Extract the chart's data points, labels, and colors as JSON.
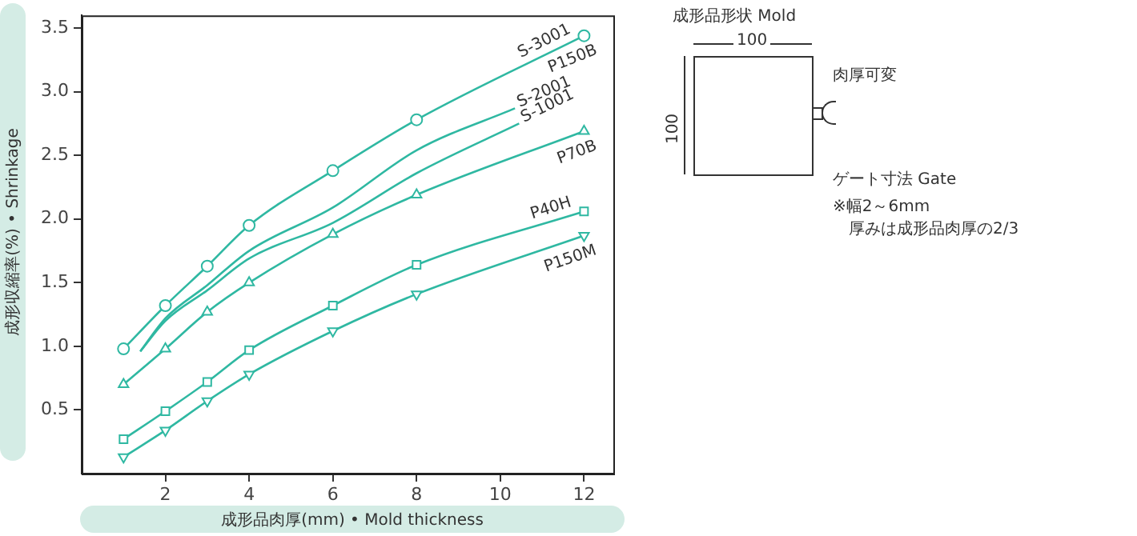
{
  "chart_data": {
    "type": "line",
    "xlabel": "成形品肉厚(mm) • Mold thickness",
    "ylabel": "成形収縮率(%) • Shrinkage",
    "xlim": [
      0,
      12.7
    ],
    "xticks": [
      2,
      4,
      6,
      8,
      10,
      12
    ],
    "ylim": [
      0,
      3.6
    ],
    "yticks": [
      0.5,
      {
        "value": 1,
        "label": "1.0"
      },
      1.5,
      {
        "value": 2,
        "label": "2.0"
      },
      2.5,
      {
        "value": 3,
        "label": "3.0"
      },
      3.5
    ],
    "grid": false,
    "legend": false,
    "series": [
      {
        "name": "S-3001",
        "color": "#2fb8a2",
        "marker": "circle",
        "x": [
          1,
          2,
          3,
          4,
          6,
          8,
          12
        ],
        "values": [
          0.98,
          1.32,
          1.63,
          1.95,
          2.38,
          2.78,
          3.44
        ]
      },
      {
        "name": "S-2001",
        "color": "#2fb8a2",
        "marker": "none",
        "x": [
          1.4,
          2,
          3,
          4,
          6,
          8,
          10.35
        ],
        "values": [
          0.96,
          1.22,
          1.48,
          1.75,
          2.09,
          2.54,
          2.87
        ]
      },
      {
        "name": "S-1001",
        "color": "#2fb8a2",
        "marker": "none",
        "x": [
          1.4,
          2,
          3,
          4,
          6,
          8,
          10.45
        ],
        "values": [
          0.96,
          1.2,
          1.44,
          1.69,
          1.97,
          2.36,
          2.75
        ]
      },
      {
        "name": "P70B",
        "color": "#2fb8a2",
        "marker": "triangle",
        "x": [
          1,
          2,
          3,
          4,
          6,
          8,
          12
        ],
        "values": [
          0.7,
          0.98,
          1.27,
          1.5,
          1.88,
          2.19,
          2.69
        ]
      },
      {
        "name": "P40H",
        "color": "#2fb8a2",
        "marker": "square",
        "x": [
          1,
          2,
          3,
          4,
          6,
          8,
          12
        ],
        "values": [
          0.27,
          0.49,
          0.72,
          0.97,
          1.32,
          1.64,
          2.06
        ]
      },
      {
        "name": "P150M",
        "color": "#2fb8a2",
        "marker": "triangle-down",
        "x": [
          1,
          2,
          3,
          4,
          6,
          8,
          12
        ],
        "values": [
          0.13,
          0.34,
          0.57,
          0.78,
          1.12,
          1.41,
          1.87
        ]
      }
    ],
    "annotations": [
      {
        "text": "P150B",
        "x": 12,
        "y": 3.44
      },
      "成形品形状 Mold",
      "100",
      "100",
      "肉厚可変",
      "ゲート寸法 Gate",
      "※幅2～6mm",
      "厚みは成形品肉厚の2/3"
    ]
  }
}
